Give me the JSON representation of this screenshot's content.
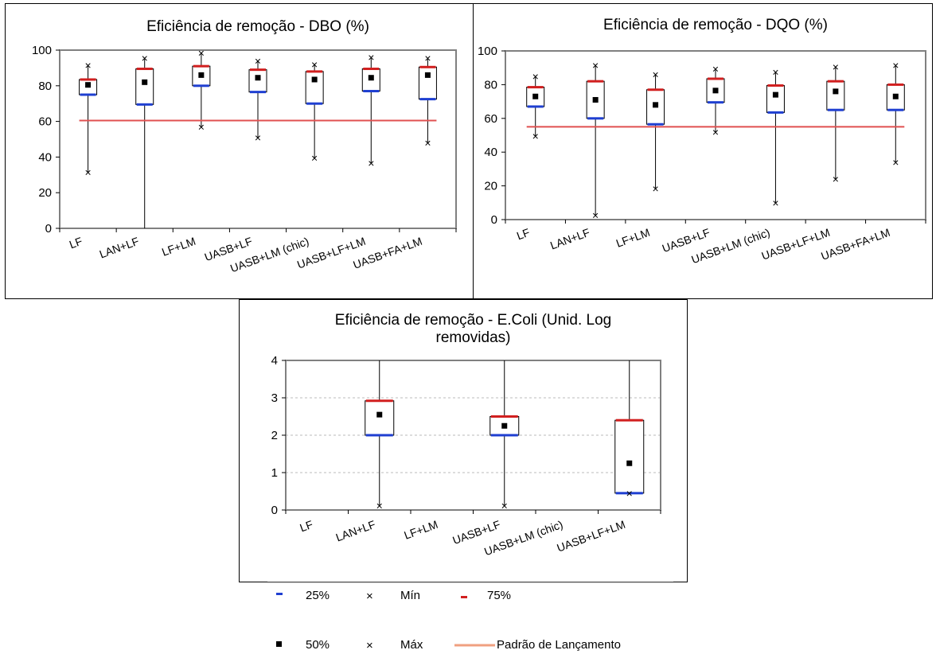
{
  "chart_data": [
    {
      "type": "box",
      "title": "Eficiência de remoção - DBO (%)",
      "xlabel": "",
      "ylabel": "",
      "ylim": [
        0,
        100
      ],
      "yticks": [
        0,
        20,
        40,
        60,
        80,
        100
      ],
      "grid": false,
      "categories": [
        "LF",
        "LAN+LF",
        "LF+LM",
        "UASB+LF",
        "UASB+LM (chic)",
        "UASB+LF+LM",
        "UASB+FA+LM"
      ],
      "p25": [
        75,
        69.5,
        80,
        76.5,
        70,
        77,
        72.5
      ],
      "median": [
        80.5,
        82,
        86,
        84.5,
        83.5,
        84.5,
        86
      ],
      "p75": [
        83.5,
        89.5,
        91,
        89,
        88,
        89.5,
        90.5
      ],
      "min": [
        31.5,
        0,
        57,
        51,
        39.5,
        36.5,
        48
      ],
      "max": [
        91.5,
        95.5,
        98.5,
        94,
        92,
        96,
        95.5
      ],
      "standard": 60.5
    },
    {
      "type": "box",
      "title": "Eficiência de remoção - DQO (%)",
      "xlabel": "",
      "ylabel": "",
      "ylim": [
        0,
        100
      ],
      "yticks": [
        0,
        20,
        40,
        60,
        80,
        100
      ],
      "grid": false,
      "categories": [
        "LF",
        "LAN+LF",
        "LF+LM",
        "UASB+LF",
        "UASB+LM (chic)",
        "UASB+LF+LM",
        "UASB+FA+LM"
      ],
      "p25": [
        67,
        60,
        56.5,
        69.5,
        63.5,
        65,
        65
      ],
      "median": [
        73,
        71,
        68,
        76.5,
        74,
        76,
        73
      ],
      "p75": [
        78.5,
        82,
        77,
        83.5,
        79.5,
        82,
        80
      ],
      "min": [
        49.5,
        2.5,
        18.5,
        52,
        10,
        24,
        34
      ],
      "max": [
        85,
        91.5,
        86,
        89.5,
        87.5,
        90.5,
        91.5
      ],
      "standard": 55
    },
    {
      "type": "box",
      "title": "Eficiência de remoção - E.Coli (Unid. Log removidas)",
      "xlabel": "",
      "ylabel": "",
      "ylim": [
        0,
        4
      ],
      "yticks": [
        0,
        1,
        2,
        3,
        4
      ],
      "grid": true,
      "categories": [
        "LF",
        "LAN+LF",
        "LF+LM",
        "UASB+LF",
        "UASB+LM (chic)",
        "UASB+LF+LM"
      ],
      "p25": [
        null,
        2.0,
        null,
        2.0,
        null,
        0.45
      ],
      "median": [
        null,
        2.55,
        null,
        2.25,
        null,
        1.25
      ],
      "p75": [
        null,
        2.92,
        null,
        2.5,
        null,
        2.4
      ],
      "min": [
        null,
        0.12,
        null,
        0.12,
        null,
        0.45
      ],
      "max": [
        null,
        4,
        null,
        4,
        null,
        4
      ]
    }
  ],
  "legend": {
    "p25_label": "25%",
    "min_label": "Mín",
    "p75_label": "75%",
    "median_label": "50%",
    "max_label": "Máx",
    "standard_label": "Padrão de Lançamento"
  },
  "colors": {
    "p25": "#1f3fd1",
    "p75": "#d11f1f",
    "standard_line": "#e05050",
    "standard_legend": "#f0a080",
    "median": "#000000",
    "grid": "#bbbbbb"
  }
}
